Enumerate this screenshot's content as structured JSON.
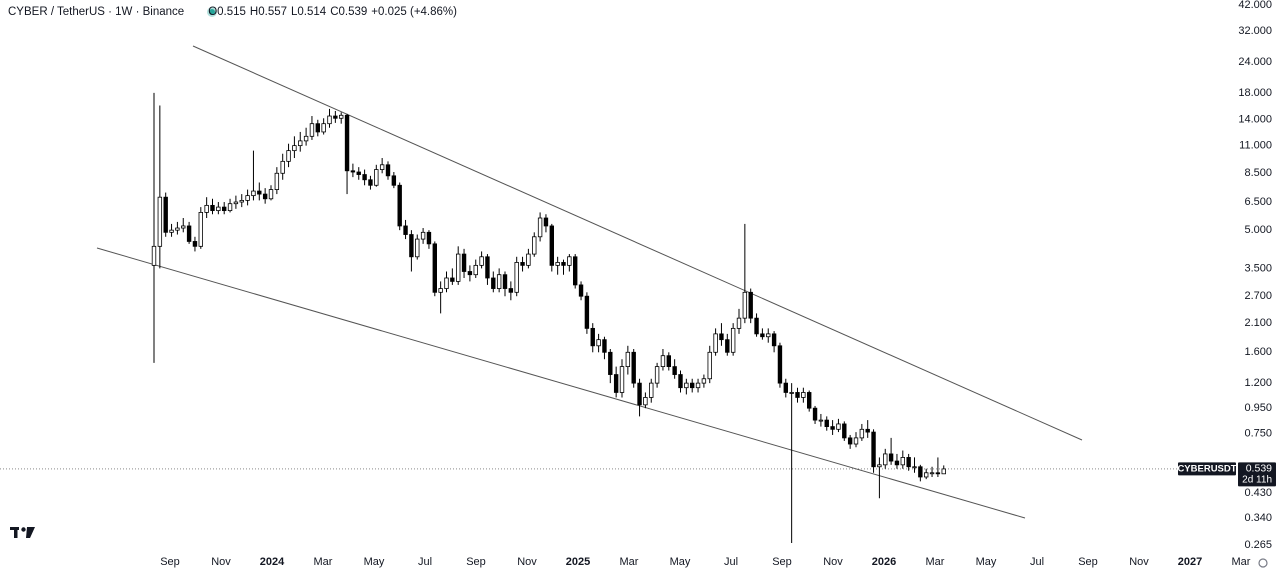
{
  "chart_data": {
    "type": "candlestick",
    "title": "CYBER / TetherUS · 1W · Binance",
    "ohlc_legend": [
      "O0.515",
      "H0.557",
      "L0.514",
      "C0.539",
      "+0.025 (+4.86%)"
    ],
    "log_scale": true,
    "grid": false,
    "up_color": "#ffffff",
    "down_color": "#000000",
    "ylim": [
      0.253,
      42.8
    ],
    "yticks": [
      {
        "value": 42,
        "label": "42.000"
      },
      {
        "value": 32,
        "label": "32.000"
      },
      {
        "value": 24,
        "label": "24.000"
      },
      {
        "value": 18,
        "label": "18.000"
      },
      {
        "value": 14,
        "label": "14.000"
      },
      {
        "value": 11,
        "label": "11.000"
      },
      {
        "value": 8.5,
        "label": "8.500"
      },
      {
        "value": 6.5,
        "label": "6.500"
      },
      {
        "value": 5,
        "label": "5.000"
      },
      {
        "value": 3.5,
        "label": "3.500"
      },
      {
        "value": 2.7,
        "label": "2.700"
      },
      {
        "value": 2.1,
        "label": "2.100"
      },
      {
        "value": 1.6,
        "label": "1.600"
      },
      {
        "value": 1.2,
        "label": "1.200"
      },
      {
        "value": 0.95,
        "label": "0.950"
      },
      {
        "value": 0.75,
        "label": "0.750"
      },
      {
        "value": 0.43,
        "label": "0.430"
      },
      {
        "value": 0.34,
        "label": "0.340"
      },
      {
        "value": 0.265,
        "label": "0.265"
      }
    ],
    "xtick_labels": [
      "Sep",
      "Nov",
      "2024",
      "Mar",
      "May",
      "Jul",
      "Sep",
      "Nov",
      "2025",
      "Mar",
      "May",
      "Jul",
      "Sep",
      "Nov",
      "2026",
      "Mar",
      "May",
      "Jul",
      "Sep",
      "Nov",
      "2027",
      "Mar"
    ],
    "last_price": {
      "symbol": "CYBERUSDT",
      "value": 0.539,
      "label": "0.539",
      "countdown": "2d 11h"
    },
    "candles": [
      [
        3.6,
        18,
        1.45,
        4.3
      ],
      [
        4.3,
        16,
        3.5,
        6.8
      ],
      [
        6.8,
        7.1,
        4.7,
        4.9
      ],
      [
        4.9,
        5.3,
        4.7,
        5.0
      ],
      [
        5.0,
        5.4,
        4.8,
        5.1
      ],
      [
        5.1,
        5.6,
        4.9,
        5.2
      ],
      [
        5.2,
        5.4,
        4.4,
        4.5
      ],
      [
        4.5,
        4.7,
        4.1,
        4.3
      ],
      [
        4.3,
        6.2,
        4.2,
        5.9
      ],
      [
        5.9,
        6.8,
        5.6,
        6.3
      ],
      [
        6.3,
        6.7,
        5.8,
        6.0
      ],
      [
        6.0,
        6.5,
        5.8,
        6.2
      ],
      [
        6.2,
        6.5,
        5.8,
        6.0
      ],
      [
        6.0,
        6.7,
        5.9,
        6.4
      ],
      [
        6.4,
        6.9,
        6.1,
        6.5
      ],
      [
        6.5,
        7.0,
        6.2,
        6.6
      ],
      [
        6.6,
        7.3,
        6.3,
        6.9
      ],
      [
        6.9,
        10.5,
        6.6,
        7.2
      ],
      [
        7.2,
        7.8,
        6.6,
        7.0
      ],
      [
        7.0,
        7.4,
        6.4,
        6.7
      ],
      [
        6.7,
        7.6,
        6.6,
        7.3
      ],
      [
        7.3,
        9.0,
        7.0,
        8.5
      ],
      [
        8.5,
        10.2,
        8.0,
        9.5
      ],
      [
        9.5,
        11.2,
        9.0,
        10.5
      ],
      [
        10.5,
        12.0,
        9.8,
        11.0
      ],
      [
        11.0,
        12.5,
        10.4,
        11.5
      ],
      [
        11.5,
        13.0,
        11.0,
        12.0
      ],
      [
        12.0,
        14.5,
        11.6,
        13.5
      ],
      [
        13.5,
        14.0,
        12.0,
        12.5
      ],
      [
        12.5,
        14.2,
        12.2,
        13.5
      ],
      [
        13.5,
        15.5,
        13.0,
        14.5
      ],
      [
        14.5,
        15.2,
        13.6,
        14.2
      ],
      [
        14.2,
        15.0,
        13.5,
        14.6
      ],
      [
        14.6,
        14.8,
        7.0,
        8.7
      ],
      [
        8.7,
        9.3,
        8.2,
        8.6
      ],
      [
        8.6,
        9.0,
        8.0,
        8.4
      ],
      [
        8.4,
        8.8,
        7.6,
        8.0
      ],
      [
        8.0,
        8.3,
        7.3,
        7.6
      ],
      [
        7.6,
        9.2,
        7.5,
        8.8
      ],
      [
        8.8,
        9.8,
        8.5,
        9.2
      ],
      [
        9.2,
        9.5,
        8.0,
        8.3
      ],
      [
        8.3,
        8.6,
        7.4,
        7.6
      ],
      [
        7.6,
        7.8,
        5.0,
        5.2
      ],
      [
        5.2,
        5.5,
        4.6,
        4.8
      ],
      [
        4.8,
        5.0,
        3.4,
        3.9
      ],
      [
        3.9,
        4.8,
        3.8,
        4.6
      ],
      [
        4.6,
        5.1,
        4.4,
        4.9
      ],
      [
        4.9,
        5.0,
        4.2,
        4.4
      ],
      [
        4.4,
        4.5,
        2.7,
        2.8
      ],
      [
        2.8,
        3.1,
        2.3,
        2.9
      ],
      [
        2.9,
        3.4,
        2.8,
        3.2
      ],
      [
        3.2,
        3.5,
        3.0,
        3.1
      ],
      [
        3.1,
        4.3,
        3.0,
        4.0
      ],
      [
        4.0,
        4.2,
        3.2,
        3.4
      ],
      [
        3.4,
        3.6,
        3.1,
        3.3
      ],
      [
        3.3,
        3.8,
        3.2,
        3.6
      ],
      [
        3.6,
        4.1,
        3.5,
        3.9
      ],
      [
        3.9,
        4.0,
        3.0,
        3.2
      ],
      [
        3.2,
        3.4,
        2.8,
        2.9
      ],
      [
        2.9,
        3.5,
        2.8,
        3.3
      ],
      [
        3.3,
        3.4,
        2.7,
        2.9
      ],
      [
        2.9,
        3.1,
        2.6,
        2.8
      ],
      [
        2.8,
        3.9,
        2.7,
        3.7
      ],
      [
        3.7,
        3.9,
        3.4,
        3.6
      ],
      [
        3.6,
        4.2,
        3.5,
        4.0
      ],
      [
        4.0,
        4.9,
        3.9,
        4.7
      ],
      [
        4.7,
        5.9,
        4.5,
        5.6
      ],
      [
        5.6,
        5.8,
        4.9,
        5.2
      ],
      [
        5.2,
        5.3,
        3.4,
        3.6
      ],
      [
        3.6,
        3.9,
        3.3,
        3.7
      ],
      [
        3.7,
        3.8,
        3.3,
        3.6
      ],
      [
        3.6,
        4.0,
        3.4,
        3.9
      ],
      [
        3.9,
        4.0,
        2.9,
        3.0
      ],
      [
        3.0,
        3.1,
        2.6,
        2.7
      ],
      [
        2.7,
        2.8,
        1.9,
        2.0
      ],
      [
        2.0,
        2.1,
        1.6,
        1.7
      ],
      [
        1.7,
        1.9,
        1.6,
        1.8
      ],
      [
        1.8,
        1.85,
        1.5,
        1.6
      ],
      [
        1.6,
        1.65,
        1.2,
        1.3
      ],
      [
        1.3,
        1.4,
        1.05,
        1.1
      ],
      [
        1.1,
        1.5,
        1.05,
        1.4
      ],
      [
        1.4,
        1.7,
        1.3,
        1.6
      ],
      [
        1.6,
        1.65,
        1.15,
        1.2
      ],
      [
        1.2,
        1.25,
        0.88,
        0.98
      ],
      [
        0.98,
        1.1,
        0.95,
        1.05
      ],
      [
        1.05,
        1.25,
        1.0,
        1.2
      ],
      [
        1.2,
        1.45,
        1.15,
        1.4
      ],
      [
        1.4,
        1.65,
        1.35,
        1.55
      ],
      [
        1.55,
        1.6,
        1.35,
        1.4
      ],
      [
        1.4,
        1.5,
        1.25,
        1.3
      ],
      [
        1.3,
        1.35,
        1.1,
        1.15
      ],
      [
        1.15,
        1.25,
        1.08,
        1.2
      ],
      [
        1.2,
        1.25,
        1.1,
        1.15
      ],
      [
        1.15,
        1.25,
        1.1,
        1.2
      ],
      [
        1.2,
        1.3,
        1.15,
        1.25
      ],
      [
        1.25,
        1.7,
        1.2,
        1.6
      ],
      [
        1.6,
        2.0,
        1.55,
        1.9
      ],
      [
        1.9,
        2.1,
        1.7,
        1.8
      ],
      [
        1.8,
        1.9,
        1.55,
        1.6
      ],
      [
        1.6,
        2.1,
        1.55,
        2.0
      ],
      [
        2.0,
        2.4,
        1.9,
        2.2
      ],
      [
        2.2,
        5.3,
        2.1,
        2.8
      ],
      [
        2.8,
        2.9,
        2.1,
        2.2
      ],
      [
        2.2,
        2.3,
        1.85,
        1.9
      ],
      [
        1.9,
        2.0,
        1.8,
        1.85
      ],
      [
        1.85,
        2.0,
        1.75,
        1.9
      ],
      [
        1.9,
        1.95,
        1.6,
        1.7
      ],
      [
        1.7,
        1.75,
        1.15,
        1.2
      ],
      [
        1.2,
        1.25,
        1.05,
        1.1
      ],
      [
        1.1,
        1.2,
        0.27,
        1.1
      ],
      [
        1.1,
        1.15,
        1.0,
        1.05
      ],
      [
        1.05,
        1.15,
        1.0,
        1.1
      ],
      [
        1.1,
        1.12,
        0.92,
        0.95
      ],
      [
        0.95,
        0.97,
        0.82,
        0.85
      ],
      [
        0.85,
        0.9,
        0.8,
        0.85
      ],
      [
        0.85,
        0.88,
        0.77,
        0.8
      ],
      [
        0.8,
        0.85,
        0.74,
        0.78
      ],
      [
        0.78,
        0.86,
        0.76,
        0.82
      ],
      [
        0.82,
        0.84,
        0.7,
        0.72
      ],
      [
        0.72,
        0.74,
        0.65,
        0.68
      ],
      [
        0.68,
        0.76,
        0.66,
        0.72
      ],
      [
        0.72,
        0.82,
        0.7,
        0.78
      ],
      [
        0.78,
        0.85,
        0.72,
        0.76
      ],
      [
        0.76,
        0.78,
        0.52,
        0.55
      ],
      [
        0.55,
        0.6,
        0.41,
        0.56
      ],
      [
        0.56,
        0.65,
        0.54,
        0.62
      ],
      [
        0.62,
        0.72,
        0.56,
        0.58
      ],
      [
        0.58,
        0.62,
        0.54,
        0.56
      ],
      [
        0.56,
        0.64,
        0.54,
        0.6
      ],
      [
        0.6,
        0.62,
        0.53,
        0.55
      ],
      [
        0.55,
        0.6,
        0.52,
        0.55
      ],
      [
        0.55,
        0.56,
        0.48,
        0.5
      ],
      [
        0.5,
        0.54,
        0.49,
        0.52
      ],
      [
        0.52,
        0.55,
        0.5,
        0.52
      ],
      [
        0.52,
        0.6,
        0.5,
        0.515
      ],
      [
        0.515,
        0.557,
        0.514,
        0.539
      ]
    ]
  }
}
